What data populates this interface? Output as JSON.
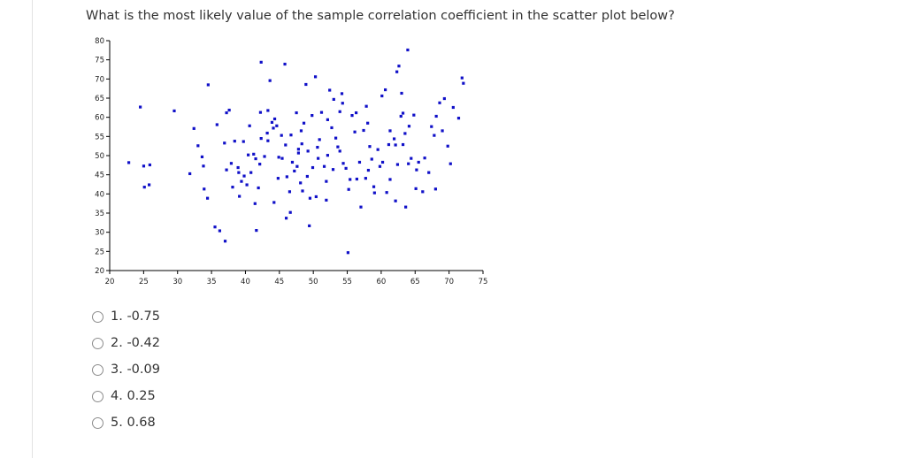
{
  "question": "What is the most likely value of the sample correlation coefficient in the scatter plot below?",
  "options": [
    {
      "label": "1. -0.75"
    },
    {
      "label": "2. -0.42"
    },
    {
      "label": "3. -0.09"
    },
    {
      "label": "4. 0.25"
    },
    {
      "label": "5. 0.68"
    }
  ],
  "chart_data": {
    "type": "scatter",
    "title": "",
    "xlabel": "",
    "ylabel": "",
    "xlim": [
      20,
      75
    ],
    "ylim": [
      20,
      80
    ],
    "x_ticks": [
      20,
      25,
      30,
      35,
      40,
      45,
      50,
      55,
      60,
      65,
      70,
      75
    ],
    "y_ticks": [
      20,
      25,
      30,
      35,
      40,
      45,
      50,
      55,
      60,
      65,
      70,
      75,
      80
    ],
    "grid": false,
    "marker_color": "#1010c8",
    "points": [
      [
        22.8,
        48.2
      ],
      [
        24.5,
        62.7
      ],
      [
        25.0,
        47.3
      ],
      [
        25.9,
        47.6
      ],
      [
        25.1,
        41.8
      ],
      [
        25.8,
        42.4
      ],
      [
        29.5,
        61.7
      ],
      [
        31.8,
        45.3
      ],
      [
        32.4,
        57.1
      ],
      [
        33.0,
        52.6
      ],
      [
        33.8,
        47.3
      ],
      [
        33.6,
        49.7
      ],
      [
        33.9,
        41.3
      ],
      [
        34.4,
        38.9
      ],
      [
        34.5,
        68.5
      ],
      [
        35.5,
        31.4
      ],
      [
        35.8,
        58.1
      ],
      [
        36.2,
        30.4
      ],
      [
        36.9,
        53.3
      ],
      [
        37.2,
        61.2
      ],
      [
        37.6,
        61.9
      ],
      [
        37.9,
        48.0
      ],
      [
        38.1,
        41.8
      ],
      [
        37.0,
        27.7
      ],
      [
        38.4,
        53.8
      ],
      [
        38.9,
        46.9
      ],
      [
        39.1,
        39.4
      ],
      [
        39.4,
        43.3
      ],
      [
        39.7,
        53.7
      ],
      [
        39.8,
        44.7
      ],
      [
        40.4,
        50.2
      ],
      [
        40.2,
        42.4
      ],
      [
        40.6,
        57.8
      ],
      [
        40.8,
        45.6
      ],
      [
        41.2,
        50.4
      ],
      [
        41.4,
        37.5
      ],
      [
        41.6,
        30.5
      ],
      [
        41.9,
        41.6
      ],
      [
        42.1,
        47.8
      ],
      [
        42.3,
        54.5
      ],
      [
        42.8,
        49.8
      ],
      [
        42.2,
        61.3
      ],
      [
        42.3,
        74.4
      ],
      [
        43.3,
        53.9
      ],
      [
        43.2,
        55.9
      ],
      [
        43.6,
        69.6
      ],
      [
        43.9,
        58.7
      ],
      [
        44.1,
        57.2
      ],
      [
        44.3,
        59.6
      ],
      [
        44.8,
        44.1
      ],
      [
        44.6,
        57.8
      ],
      [
        44.2,
        37.8
      ],
      [
        45.3,
        55.3
      ],
      [
        45.8,
        73.9
      ],
      [
        45.4,
        49.3
      ],
      [
        45.9,
        52.8
      ],
      [
        46.1,
        44.5
      ],
      [
        46.0,
        33.7
      ],
      [
        46.6,
        35.2
      ],
      [
        46.9,
        48.3
      ],
      [
        47.2,
        46.0
      ],
      [
        47.5,
        61.2
      ],
      [
        47.8,
        50.7
      ],
      [
        47.6,
        47.2
      ],
      [
        48.2,
        56.5
      ],
      [
        48.1,
        42.9
      ],
      [
        48.6,
        58.5
      ],
      [
        48.9,
        68.6
      ],
      [
        48.4,
        40.8
      ],
      [
        49.2,
        51.2
      ],
      [
        49.1,
        44.6
      ],
      [
        49.5,
        38.9
      ],
      [
        49.4,
        31.7
      ],
      [
        49.8,
        60.5
      ],
      [
        49.9,
        46.9
      ],
      [
        50.3,
        70.6
      ],
      [
        50.6,
        52.2
      ],
      [
        50.9,
        54.2
      ],
      [
        50.4,
        39.3
      ],
      [
        51.2,
        61.3
      ],
      [
        51.6,
        47.2
      ],
      [
        51.9,
        38.4
      ],
      [
        52.1,
        50.1
      ],
      [
        52.4,
        67.1
      ],
      [
        52.7,
        57.3
      ],
      [
        53.0,
        64.7
      ],
      [
        53.3,
        54.6
      ],
      [
        52.9,
        46.4
      ],
      [
        53.6,
        52.3
      ],
      [
        53.9,
        61.5
      ],
      [
        54.3,
        63.7
      ],
      [
        54.4,
        48.0
      ],
      [
        54.2,
        66.2
      ],
      [
        54.8,
        46.7
      ],
      [
        55.2,
        41.2
      ],
      [
        55.1,
        24.7
      ],
      [
        55.7,
        60.5
      ],
      [
        55.4,
        43.8
      ],
      [
        56.3,
        61.2
      ],
      [
        56.8,
        48.3
      ],
      [
        57.0,
        36.6
      ],
      [
        57.4,
        56.6
      ],
      [
        57.7,
        44.1
      ],
      [
        58.0,
        58.5
      ],
      [
        58.3,
        52.4
      ],
      [
        58.6,
        49.1
      ],
      [
        58.9,
        41.9
      ],
      [
        59.0,
        40.3
      ],
      [
        59.5,
        51.6
      ],
      [
        60.2,
        48.3
      ],
      [
        60.1,
        65.6
      ],
      [
        60.8,
        40.4
      ],
      [
        61.1,
        52.9
      ],
      [
        61.3,
        56.5
      ],
      [
        61.9,
        54.4
      ],
      [
        62.1,
        52.8
      ],
      [
        62.4,
        47.7
      ],
      [
        62.1,
        38.2
      ],
      [
        62.3,
        71.9
      ],
      [
        62.6,
        73.4
      ],
      [
        63.0,
        66.3
      ],
      [
        63.2,
        61.1
      ],
      [
        63.5,
        55.8
      ],
      [
        63.6,
        36.6
      ],
      [
        64.1,
        57.7
      ],
      [
        64.4,
        49.3
      ],
      [
        64.0,
        47.9
      ],
      [
        64.8,
        60.6
      ],
      [
        65.2,
        46.3
      ],
      [
        65.1,
        41.4
      ],
      [
        65.5,
        48.3
      ],
      [
        66.4,
        49.4
      ],
      [
        67.0,
        45.6
      ],
      [
        67.4,
        57.6
      ],
      [
        67.8,
        55.3
      ],
      [
        68.1,
        60.3
      ],
      [
        68.0,
        41.3
      ],
      [
        68.6,
        63.8
      ],
      [
        69.0,
        56.5
      ],
      [
        69.3,
        64.9
      ],
      [
        69.8,
        52.5
      ],
      [
        70.2,
        47.9
      ],
      [
        70.6,
        62.6
      ],
      [
        71.4,
        59.8
      ],
      [
        71.9,
        70.3
      ],
      [
        72.1,
        68.9
      ],
      [
        60.6,
        67.2
      ],
      [
        61.3,
        43.8
      ],
      [
        59.8,
        47.2
      ],
      [
        56.1,
        56.2
      ],
      [
        53.9,
        51.2
      ],
      [
        47.8,
        51.7
      ],
      [
        46.5,
        40.6
      ],
      [
        44.9,
        49.6
      ],
      [
        43.3,
        61.8
      ],
      [
        41.5,
        49.2
      ],
      [
        39.0,
        45.6
      ],
      [
        37.2,
        46.3
      ],
      [
        52.1,
        59.4
      ],
      [
        50.7,
        49.3
      ],
      [
        57.8,
        62.9
      ],
      [
        58.1,
        46.2
      ],
      [
        56.4,
        43.9
      ],
      [
        63.9,
        77.6
      ],
      [
        63.2,
        52.9
      ],
      [
        66.1,
        40.6
      ],
      [
        62.9,
        60.3
      ],
      [
        51.9,
        43.3
      ],
      [
        48.3,
        53.1
      ],
      [
        46.7,
        55.4
      ]
    ]
  }
}
